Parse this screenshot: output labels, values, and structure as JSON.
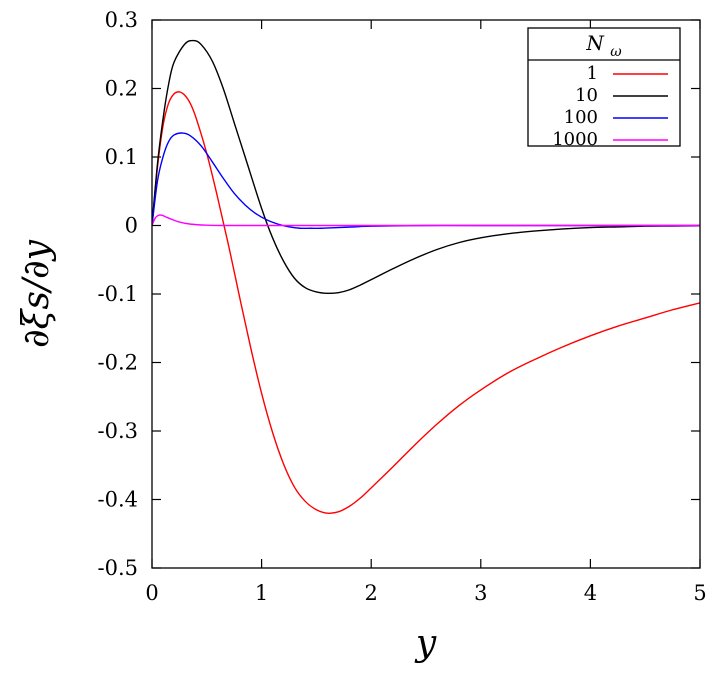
{
  "chart_data": {
    "type": "line",
    "title": "",
    "xlabel": "y",
    "ylabel": "∂ξs/∂y",
    "xlim": [
      0,
      5
    ],
    "ylim": [
      -0.5,
      0.3
    ],
    "xticks": [
      0,
      1,
      2,
      3,
      4,
      5
    ],
    "xtick_labels": [
      "0",
      "1",
      "2",
      "3",
      "4",
      "5"
    ],
    "yticks": [
      -0.5,
      -0.4,
      -0.3,
      -0.2,
      -0.1,
      0,
      0.1,
      0.2,
      0.3
    ],
    "ytick_labels": [
      "-0.5",
      "-0.4",
      "-0.3",
      "-0.2",
      "-0.1",
      "0",
      "0.1",
      "0.2",
      "0.3"
    ],
    "grid": false,
    "legend": {
      "title": "N",
      "title_sub": "ω",
      "placement": "top-right"
    },
    "series": [
      {
        "name": "1",
        "color": "#ff0000",
        "x": [
          0,
          0.05,
          0.1,
          0.15,
          0.2,
          0.25,
          0.3,
          0.35,
          0.4,
          0.5,
          0.6,
          0.7,
          0.8,
          0.9,
          1.0,
          1.1,
          1.2,
          1.3,
          1.4,
          1.5,
          1.6,
          1.7,
          1.8,
          1.9,
          2.0,
          2.2,
          2.4,
          2.6,
          2.8,
          3.0,
          3.25,
          3.5,
          3.75,
          4.0,
          4.25,
          4.5,
          4.75,
          5.0
        ],
        "y": [
          0,
          0.085,
          0.145,
          0.178,
          0.192,
          0.195,
          0.19,
          0.178,
          0.158,
          0.105,
          0.04,
          -0.03,
          -0.105,
          -0.178,
          -0.245,
          -0.302,
          -0.348,
          -0.382,
          -0.403,
          -0.415,
          -0.42,
          -0.418,
          -0.41,
          -0.398,
          -0.383,
          -0.352,
          -0.32,
          -0.29,
          -0.263,
          -0.24,
          -0.215,
          -0.195,
          -0.177,
          -0.161,
          -0.147,
          -0.135,
          -0.123,
          -0.113
        ]
      },
      {
        "name": "10",
        "color": "#000000",
        "x": [
          0,
          0.05,
          0.1,
          0.15,
          0.2,
          0.3,
          0.38,
          0.45,
          0.55,
          0.65,
          0.75,
          0.85,
          1.0,
          1.1,
          1.2,
          1.3,
          1.4,
          1.5,
          1.6,
          1.7,
          1.8,
          1.9,
          2.0,
          2.2,
          2.4,
          2.6,
          2.8,
          3.0,
          3.25,
          3.5,
          3.75,
          4.0,
          4.25,
          4.5,
          4.75,
          5.0
        ],
        "y": [
          0,
          0.09,
          0.155,
          0.205,
          0.238,
          0.265,
          0.27,
          0.264,
          0.24,
          0.2,
          0.15,
          0.1,
          0.025,
          -0.018,
          -0.052,
          -0.077,
          -0.091,
          -0.097,
          -0.099,
          -0.098,
          -0.094,
          -0.087,
          -0.079,
          -0.063,
          -0.048,
          -0.035,
          -0.025,
          -0.018,
          -0.012,
          -0.008,
          -0.005,
          -0.003,
          -0.002,
          -0.001,
          -0.0008,
          -0.0005
        ]
      },
      {
        "name": "100",
        "color": "#0000ff",
        "x": [
          0,
          0.05,
          0.1,
          0.15,
          0.2,
          0.28,
          0.35,
          0.45,
          0.55,
          0.65,
          0.75,
          0.85,
          0.95,
          1.05,
          1.15,
          1.25,
          1.35,
          1.45,
          1.55,
          1.7,
          1.85,
          2.0,
          2.5,
          3.0,
          4.0,
          5.0
        ],
        "y": [
          0,
          0.065,
          0.1,
          0.122,
          0.132,
          0.135,
          0.131,
          0.116,
          0.093,
          0.069,
          0.047,
          0.03,
          0.017,
          0.008,
          0.002,
          -0.002,
          -0.004,
          -0.004,
          -0.004,
          -0.003,
          -0.002,
          -0.001,
          0,
          0,
          0,
          0
        ]
      },
      {
        "name": "1000",
        "color": "#ff00ff",
        "x": [
          0,
          0.03,
          0.06,
          0.09,
          0.12,
          0.18,
          0.25,
          0.35,
          0.5,
          0.7,
          1.0,
          1.5,
          2.0,
          3.0,
          4.0,
          5.0
        ],
        "y": [
          0,
          0.011,
          0.015,
          0.015,
          0.013,
          0.009,
          0.005,
          0.002,
          0.0005,
          0,
          0,
          0,
          0,
          0,
          0,
          0
        ]
      }
    ]
  }
}
